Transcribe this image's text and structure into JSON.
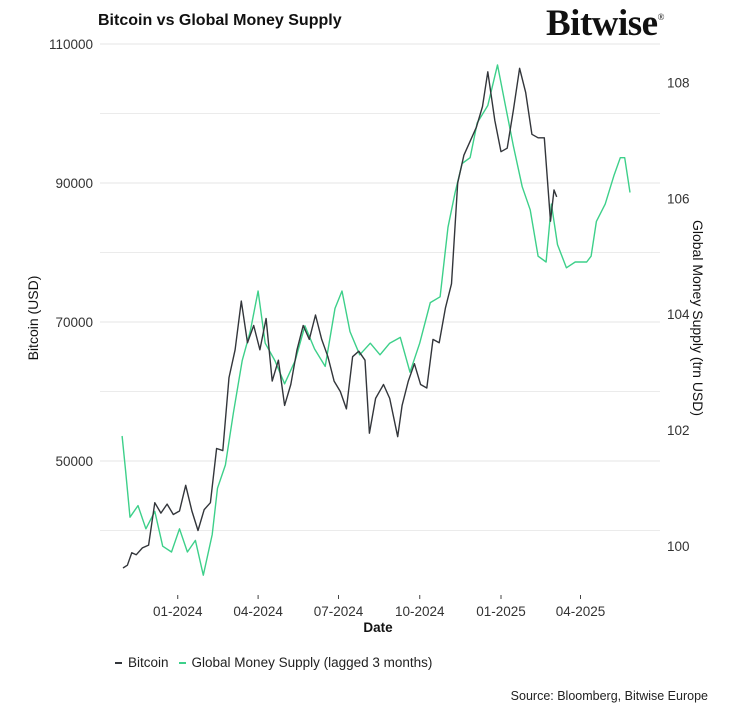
{
  "header": {
    "title": "Bitcoin vs Global Money Supply",
    "logo": "Bitwise",
    "logo_mark": "®"
  },
  "footer": {
    "source": "Source: Bloomberg, Bitwise Europe"
  },
  "chart_data": {
    "type": "line",
    "title": "Bitcoin vs Global Money Supply",
    "xlabel": "Date",
    "ylabel": "Bitcoin (USD)",
    "ylabel_right": "Global Money Supply (trn USD)",
    "xlim": [
      "2023-10-05",
      "2025-06-30"
    ],
    "ylim": [
      31150,
      110000
    ],
    "ylim_right": [
      99.21,
      108.66
    ],
    "grid": "horizontal",
    "legend": "bottom",
    "x_ticks": [
      {
        "date": "2024-01-01",
        "label": "01-2024"
      },
      {
        "date": "2024-04-01",
        "label": "04-2024"
      },
      {
        "date": "2024-07-01",
        "label": "07-2024"
      },
      {
        "date": "2024-10-01",
        "label": "10-2024"
      },
      {
        "date": "2025-01-01",
        "label": "01-2025"
      },
      {
        "date": "2025-04-01",
        "label": "04-2025"
      }
    ],
    "y_ticks": [
      {
        "value": 50000,
        "label": "50000"
      },
      {
        "value": 70000,
        "label": "70000"
      },
      {
        "value": 90000,
        "label": "90000"
      },
      {
        "value": 110000,
        "label": "110000"
      }
    ],
    "y_minor_grid": [
      40000,
      60000,
      80000,
      100000
    ],
    "y_ticks_right": [
      {
        "value": 100,
        "label": "100"
      },
      {
        "value": 102,
        "label": "102"
      },
      {
        "value": 104,
        "label": "104"
      },
      {
        "value": 106,
        "label": "106"
      },
      {
        "value": 108,
        "label": "108"
      }
    ],
    "series": [
      {
        "name": "Bitcoin",
        "axis": "left",
        "color": "#33363b",
        "points": [
          [
            "2023-10-31",
            34600
          ],
          [
            "2023-11-05",
            35000
          ],
          [
            "2023-11-10",
            36800
          ],
          [
            "2023-11-15",
            36500
          ],
          [
            "2023-11-22",
            37500
          ],
          [
            "2023-11-29",
            37900
          ],
          [
            "2023-12-06",
            44000
          ],
          [
            "2023-12-13",
            42500
          ],
          [
            "2023-12-20",
            43800
          ],
          [
            "2023-12-27",
            42300
          ],
          [
            "2024-01-03",
            42800
          ],
          [
            "2024-01-10",
            46500
          ],
          [
            "2024-01-17",
            42800
          ],
          [
            "2024-01-24",
            40000
          ],
          [
            "2024-01-31",
            43000
          ],
          [
            "2024-02-07",
            44000
          ],
          [
            "2024-02-14",
            51800
          ],
          [
            "2024-02-21",
            51500
          ],
          [
            "2024-02-28",
            62000
          ],
          [
            "2024-03-06",
            66000
          ],
          [
            "2024-03-13",
            73000
          ],
          [
            "2024-03-20",
            67000
          ],
          [
            "2024-03-27",
            69500
          ],
          [
            "2024-04-03",
            66000
          ],
          [
            "2024-04-10",
            70500
          ],
          [
            "2024-04-17",
            61500
          ],
          [
            "2024-04-24",
            64500
          ],
          [
            "2024-05-01",
            58000
          ],
          [
            "2024-05-08",
            61000
          ],
          [
            "2024-05-15",
            66000
          ],
          [
            "2024-05-22",
            69500
          ],
          [
            "2024-05-29",
            67500
          ],
          [
            "2024-06-05",
            71000
          ],
          [
            "2024-06-12",
            67500
          ],
          [
            "2024-06-19",
            65000
          ],
          [
            "2024-06-26",
            61500
          ],
          [
            "2024-07-03",
            60000
          ],
          [
            "2024-07-10",
            57500
          ],
          [
            "2024-07-17",
            65000
          ],
          [
            "2024-07-24",
            65800
          ],
          [
            "2024-07-31",
            64500
          ],
          [
            "2024-08-05",
            54000
          ],
          [
            "2024-08-12",
            59000
          ],
          [
            "2024-08-21",
            61000
          ],
          [
            "2024-08-28",
            59000
          ],
          [
            "2024-09-06",
            53500
          ],
          [
            "2024-09-11",
            58000
          ],
          [
            "2024-09-18",
            61500
          ],
          [
            "2024-09-25",
            64000
          ],
          [
            "2024-10-02",
            61000
          ],
          [
            "2024-10-09",
            60500
          ],
          [
            "2024-10-16",
            67500
          ],
          [
            "2024-10-23",
            67000
          ],
          [
            "2024-10-30",
            72000
          ],
          [
            "2024-11-06",
            75500
          ],
          [
            "2024-11-13",
            90000
          ],
          [
            "2024-11-20",
            94000
          ],
          [
            "2024-11-27",
            96000
          ],
          [
            "2024-12-04",
            98000
          ],
          [
            "2024-12-11",
            101000
          ],
          [
            "2024-12-17",
            106000
          ],
          [
            "2024-12-25",
            99000
          ],
          [
            "2025-01-01",
            94500
          ],
          [
            "2025-01-08",
            95000
          ],
          [
            "2025-01-15",
            100500
          ],
          [
            "2025-01-22",
            106500
          ],
          [
            "2025-01-29",
            103000
          ],
          [
            "2025-02-05",
            97000
          ],
          [
            "2025-02-12",
            96500
          ],
          [
            "2025-02-19",
            96500
          ],
          [
            "2025-02-26",
            84500
          ],
          [
            "2025-03-02",
            89000
          ],
          [
            "2025-03-05",
            88000
          ]
        ]
      },
      {
        "name": "Global Money Supply (lagged 3 months)",
        "axis": "right",
        "color": "#3dd08a",
        "points": [
          [
            "2023-10-30",
            101.9
          ],
          [
            "2023-11-03",
            101.3
          ],
          [
            "2023-11-08",
            100.5
          ],
          [
            "2023-11-17",
            100.7
          ],
          [
            "2023-11-26",
            100.3
          ],
          [
            "2023-12-06",
            100.6
          ],
          [
            "2023-12-15",
            100.0
          ],
          [
            "2023-12-25",
            99.9
          ],
          [
            "2024-01-03",
            100.3
          ],
          [
            "2024-01-12",
            99.9
          ],
          [
            "2024-01-21",
            100.1
          ],
          [
            "2024-01-30",
            99.5
          ],
          [
            "2024-02-09",
            100.2
          ],
          [
            "2024-02-15",
            101.0
          ],
          [
            "2024-02-24",
            101.4
          ],
          [
            "2024-03-04",
            102.3
          ],
          [
            "2024-03-14",
            103.2
          ],
          [
            "2024-03-23",
            103.7
          ],
          [
            "2024-04-01",
            104.4
          ],
          [
            "2024-04-09",
            103.5
          ],
          [
            "2024-04-20",
            103.2
          ],
          [
            "2024-05-01",
            102.8
          ],
          [
            "2024-05-13",
            103.2
          ],
          [
            "2024-05-24",
            103.8
          ],
          [
            "2024-06-04",
            103.4
          ],
          [
            "2024-06-16",
            103.1
          ],
          [
            "2024-06-27",
            104.1
          ],
          [
            "2024-07-05",
            104.4
          ],
          [
            "2024-07-14",
            103.7
          ],
          [
            "2024-07-25",
            103.3
          ],
          [
            "2024-08-06",
            103.5
          ],
          [
            "2024-08-17",
            103.3
          ],
          [
            "2024-08-28",
            103.5
          ],
          [
            "2024-09-09",
            103.6
          ],
          [
            "2024-09-20",
            103.0
          ],
          [
            "2024-10-01",
            103.5
          ],
          [
            "2024-10-13",
            104.2
          ],
          [
            "2024-10-24",
            104.3
          ],
          [
            "2024-11-02",
            105.5
          ],
          [
            "2024-11-10",
            106.1
          ],
          [
            "2024-11-18",
            106.6
          ],
          [
            "2024-11-27",
            106.7
          ],
          [
            "2024-12-05",
            107.3
          ],
          [
            "2024-12-17",
            107.6
          ],
          [
            "2024-12-28",
            108.3
          ],
          [
            "2025-01-06",
            107.6
          ],
          [
            "2025-01-15",
            106.9
          ],
          [
            "2025-01-25",
            106.2
          ],
          [
            "2025-02-03",
            105.8
          ],
          [
            "2025-02-12",
            105.0
          ],
          [
            "2025-02-21",
            104.9
          ],
          [
            "2025-02-27",
            105.9
          ],
          [
            "2025-03-06",
            105.2
          ],
          [
            "2025-03-16",
            104.8
          ],
          [
            "2025-03-26",
            104.9
          ],
          [
            "2025-04-08",
            104.9
          ],
          [
            "2025-04-13",
            105.0
          ],
          [
            "2025-04-19",
            105.6
          ],
          [
            "2025-04-29",
            105.9
          ],
          [
            "2025-05-09",
            106.4
          ],
          [
            "2025-05-16",
            106.7
          ],
          [
            "2025-05-21",
            106.7
          ],
          [
            "2025-05-27",
            106.1
          ]
        ]
      }
    ]
  }
}
